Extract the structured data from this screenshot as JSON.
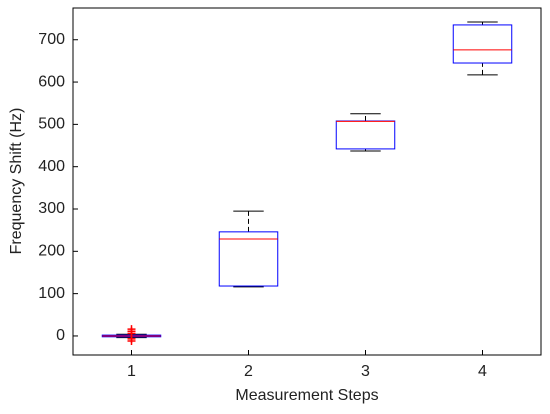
{
  "chart_data": {
    "type": "box",
    "xlabel": "Measurement Steps",
    "ylabel": "Frequency Shift (Hz)",
    "categories": [
      "1",
      "2",
      "3",
      "4"
    ],
    "boxes": [
      {
        "min": -4,
        "q1": -2,
        "median": 0,
        "q3": 2,
        "max": 4,
        "outliers": [
          -12,
          -7,
          6,
          11,
          16
        ]
      },
      {
        "min": 116,
        "q1": 118,
        "median": 229,
        "q3": 246,
        "max": 295,
        "outliers": []
      },
      {
        "min": 437,
        "q1": 442,
        "median": 507,
        "q3": 508,
        "max": 525,
        "outliers": []
      },
      {
        "min": 617,
        "q1": 645,
        "median": 676,
        "q3": 735,
        "max": 742,
        "outliers": []
      }
    ],
    "box_color": "#0000ff",
    "median_color": "#ff0000",
    "whisker_color": "#000000",
    "outlier_color": "#ff0000",
    "ylim": [
      -45,
      775
    ],
    "yticks": [
      0,
      100,
      200,
      300,
      400,
      500,
      600,
      700
    ]
  }
}
